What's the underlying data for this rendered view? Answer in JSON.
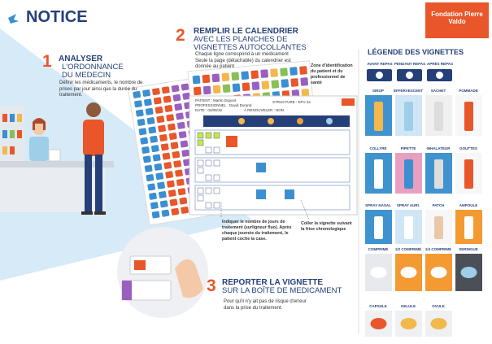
{
  "header": {
    "title": "NOTICE",
    "logo": "Fondation Pierre Valdo"
  },
  "steps": [
    {
      "number": "1",
      "title": "ANALYSER",
      "subtitle": "L'ORDONNANCE DU MEDECIN",
      "text": "Définir les médicaments, le nombre de prises par jour ainsi que la durée du traitement."
    },
    {
      "number": "2",
      "title": "REMPLIR LE CALENDRIER",
      "subtitle": "AVEC LES PLANCHES DE VIGNETTES AUTOCOLLANTES",
      "text": "Chaque ligne correspond à un médicament Seule la page (détachable) du calendrier est donnée au patient"
    },
    {
      "number": "3",
      "title": "REPORTER LA VIGNETTE",
      "subtitle": "SUR LA BOÎTE DE MEDICAMENT",
      "text": "Pour qu'il n'y ait pas de risque d'erreur dans la prise du traitement."
    }
  ],
  "calendar": {
    "patient": "PATIENT : Martin Dupont",
    "professional": "PROFESSIONNEL : David Durand",
    "date": "DATE : 04/09/18",
    "structure": "STRUCTURE : EPV 42",
    "renew": "À RENOUVELER : NON"
  },
  "annotations": {
    "zone": "Zone d'identification du patient et du professionnel de santé",
    "days": "Indiquer le nombre de jours de traitement (surligneur fluo). Après chaque journée du traitement, le patient coche la case.",
    "stick": "Coller la vignette suivant la frise chronologique"
  },
  "legend": {
    "title": "LÉGENDE DES VIGNETTES",
    "meals": [
      "AVANT REPAS",
      "PENDANT REPAS",
      "APRÈS REPAS"
    ],
    "items": [
      "SIROP",
      "EFFERVESCENT",
      "SACHET",
      "POMMADE",
      "COLLYRE",
      "PIPETTE",
      "INHALATEUR",
      "GOUTTES",
      "SPRAY NASAL",
      "SPRAY AURI.",
      "PATCH",
      "AMPOULE",
      "COMPRIMÉ",
      "1/2 COMPRIMÉ",
      "1/4 COMPRIMÉ",
      "SERINGUE",
      "CAPSULE",
      "GELULE",
      "OVULE"
    ]
  }
}
